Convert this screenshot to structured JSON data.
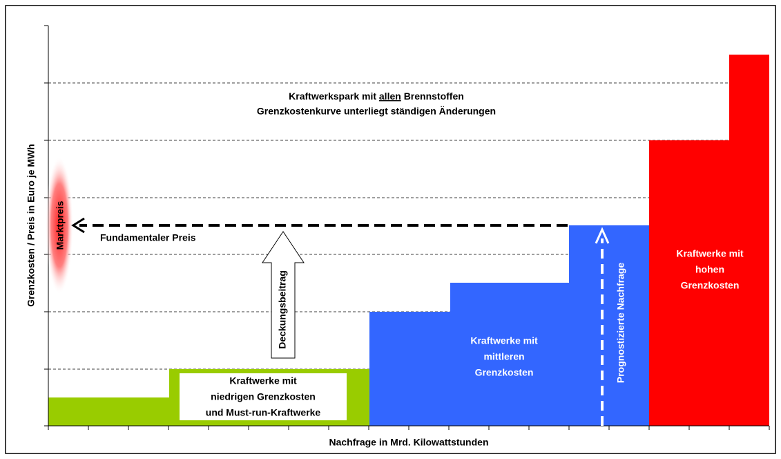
{
  "chart": {
    "annotation": {
      "line1_prefix": "Kraftwerkspark mit",
      "line1_underlined": "allen",
      "line1_suffix": "Brennstoffen",
      "line2": "Grenzkostenkurve unterliegt ständigen Änderungen"
    },
    "y_axis_label": "Grenzkosten / Preis in Euro je MWh",
    "x_axis_label": "Nachfrage in Mrd. Kilowattstunden",
    "market_price": "Marktpreis",
    "fundamental_price": "Fundamentaler Preis",
    "contribution": "Deckungsbeitrag",
    "forecast_demand": "Prognostizierte Nachfrage",
    "low_cost_label": [
      "Kraftwerke mit",
      "niedrigen Grenzkosten",
      "und Must-run-Kraftwerke"
    ],
    "mid_cost_label": [
      "Kraftwerke mit",
      "mittleren",
      "Grenzkosten"
    ],
    "high_cost_label": [
      "Kraftwerke mit",
      "hohen",
      "Grenzkosten"
    ]
  }
}
